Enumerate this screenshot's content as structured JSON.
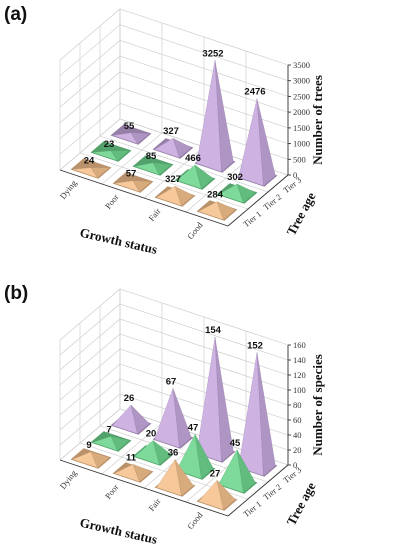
{
  "chart_data": [
    {
      "type": "bar3d-pyramid",
      "panel_label": "(a)",
      "xlabel": "Growth status",
      "ylabel": "Tree age",
      "zlabel": "Number of trees",
      "growth_status": [
        "Dying",
        "Poor",
        "Fair",
        "Good"
      ],
      "tree_age": [
        "Tier 1",
        "Tier 2",
        "Tier 3"
      ],
      "zlim": [
        0,
        3500
      ],
      "zticks": [
        0,
        500,
        1000,
        1500,
        2000,
        2500,
        3000,
        3500
      ],
      "series": [
        {
          "name": "Tier 1",
          "color": "#f6c28e",
          "values": [
            24,
            57,
            327,
            284
          ]
        },
        {
          "name": "Tier 2",
          "color": "#6fd68f",
          "values": [
            23,
            85,
            466,
            302
          ]
        },
        {
          "name": "Tier 3",
          "color": "#c7a9df",
          "values": [
            55,
            327,
            3252,
            2476
          ]
        }
      ]
    },
    {
      "type": "bar3d-pyramid",
      "panel_label": "(b)",
      "xlabel": "Growth status",
      "ylabel": "Tree age",
      "zlabel": "Number of species",
      "growth_status": [
        "Dying",
        "Poor",
        "Fair",
        "Good"
      ],
      "tree_age": [
        "Tier 1",
        "Tier 2",
        "Tier 3"
      ],
      "zlim": [
        0,
        160
      ],
      "zticks": [
        0,
        20,
        40,
        60,
        80,
        100,
        120,
        140,
        160
      ],
      "series": [
        {
          "name": "Tier 1",
          "color": "#f6c28e",
          "values": [
            9,
            11,
            36,
            27
          ]
        },
        {
          "name": "Tier 2",
          "color": "#6fd68f",
          "values": [
            7,
            20,
            47,
            45
          ]
        },
        {
          "name": "Tier 3",
          "color": "#c7a9df",
          "values": [
            26,
            67,
            154,
            152
          ]
        }
      ]
    }
  ]
}
